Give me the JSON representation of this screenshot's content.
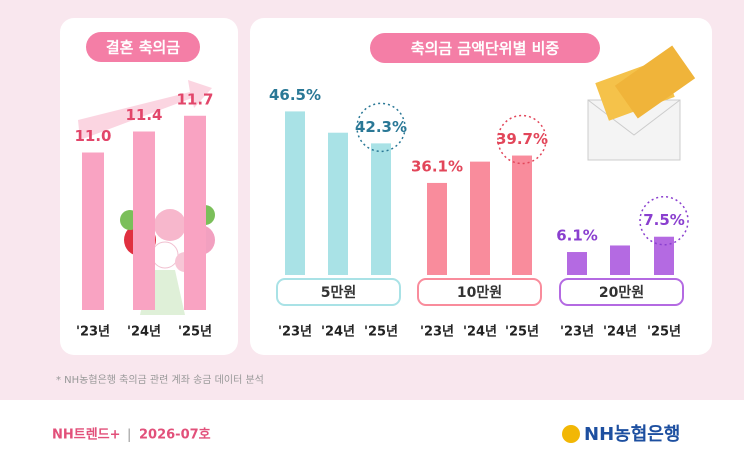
{
  "panel_title": "축의금 금액단위별 비중",
  "footnote": "* NH농협은행 축의금 관련 계좌 송금 데이터 분석",
  "footer": {
    "brand": "NH트렌드+",
    "separator": "|",
    "issue": "2026-07호",
    "logo": "NH농협은행"
  },
  "chart_data": [
    {
      "type": "bar",
      "title": "결혼 축의금",
      "categories": [
        "'23년",
        "'24년",
        "'25년"
      ],
      "values": [
        11.0,
        11.4,
        11.7
      ],
      "value_labels": [
        "11.0",
        "11.4",
        "11.7"
      ],
      "color": "#f9a3c2",
      "label_color": "#e2466a",
      "ylim": [
        8,
        12
      ]
    },
    {
      "type": "bar",
      "title": "5만원",
      "categories": [
        "'23년",
        "'24년",
        "'25년"
      ],
      "values": [
        46.5,
        43.7,
        42.3
      ],
      "value_labels": [
        "46.5%",
        null,
        "42.3%"
      ],
      "color": "#a9e2e6",
      "label_color": "#2a7896",
      "ylim": [
        25,
        48
      ]
    },
    {
      "type": "bar",
      "title": "10만원",
      "categories": [
        "'23년",
        "'24년",
        "'25년"
      ],
      "values": [
        36.1,
        38.9,
        39.7
      ],
      "value_labels": [
        "36.1%",
        null,
        "39.7%"
      ],
      "color": "#f98c9c",
      "label_color": "#e2465a",
      "ylim": [
        24,
        47
      ]
    },
    {
      "type": "bar",
      "title": "20만원",
      "categories": [
        "'23년",
        "'24년",
        "'25년"
      ],
      "values": [
        6.1,
        6.7,
        7.5
      ],
      "value_labels": [
        "6.1%",
        null,
        "7.5%"
      ],
      "color": "#b46ae2",
      "label_color": "#8a3fcf",
      "ylim": [
        4,
        20
      ]
    }
  ]
}
